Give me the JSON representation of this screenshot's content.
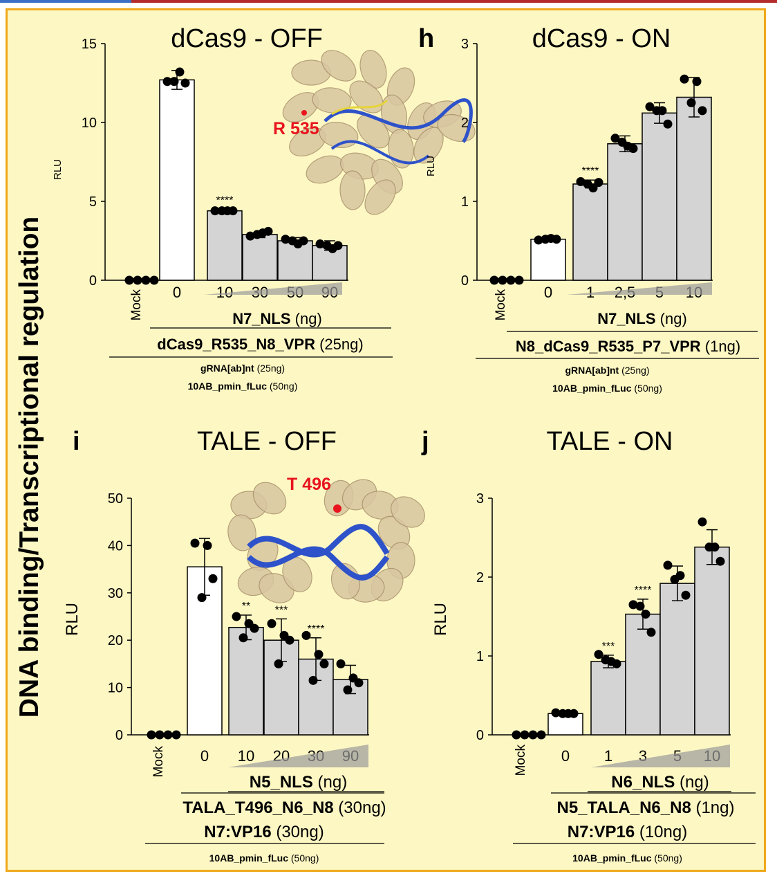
{
  "y_section_label": "DNA binding/Transcriptional regulation",
  "colors": {
    "background": "#fdf7c3",
    "border": "#f0a81c",
    "bar_control": "#ffffff",
    "bar_treated": "#d4d4d4",
    "dot": "#000000",
    "highlight_red": "#e8141e",
    "protein": "#d8c6a0",
    "dna": "#2e52c9"
  },
  "chart_data": [
    {
      "panel_letter": "",
      "title": "dCas9 - OFF",
      "type": "bar",
      "ylabel": "RLU",
      "ylim": [
        0,
        15
      ],
      "yticks": [
        0,
        5,
        10,
        15
      ],
      "categories": [
        "Mock",
        "0",
        "10",
        "30",
        "50",
        "90"
      ],
      "values": [
        0,
        12.7,
        4.4,
        2.9,
        2.5,
        2.2
      ],
      "errors": [
        0,
        0.6,
        0.1,
        0.2,
        0.2,
        0.3
      ],
      "replicates": [
        [
          0,
          0,
          0,
          0
        ],
        [
          12.6,
          13.2,
          12.5,
          12.6
        ],
        [
          4.4,
          4.4,
          4.4,
          4.4
        ],
        [
          2.8,
          3.0,
          3.1,
          2.9
        ],
        [
          2.6,
          2.3,
          2.5,
          2.5
        ],
        [
          2.3,
          2.0,
          2.2,
          2.2
        ]
      ],
      "bar_styles": [
        "none",
        "control",
        "treated",
        "treated",
        "treated",
        "treated"
      ],
      "significance": {
        "2": "****"
      },
      "ramp": {
        "from": 2,
        "to": 5
      },
      "label_rows": [
        {
          "text": "N7_NLS",
          "suffix": "(ng)",
          "bold": true
        },
        {
          "text": "dCas9_R535_N8_VPR",
          "suffix": "(25ng)",
          "bold": true
        },
        {
          "text": "gRNA[ab]nt",
          "suffix": "(25ng)",
          "bold": false
        },
        {
          "text": "10AB_pmin_fLuc",
          "suffix": "(50ng)",
          "bold": false
        }
      ],
      "structure_label": "R 535",
      "structure_type": "cas9"
    },
    {
      "panel_letter": "h",
      "title": "dCas9 - ON",
      "type": "bar",
      "ylabel": "RLU",
      "ylim": [
        0,
        3
      ],
      "yticks": [
        0,
        1,
        2,
        3
      ],
      "categories": [
        "Mock",
        "0",
        "1",
        "2,5",
        "5",
        "10"
      ],
      "values": [
        0,
        0.52,
        1.22,
        1.73,
        2.12,
        2.32
      ],
      "errors": [
        0,
        0.02,
        0.05,
        0.1,
        0.13,
        0.25
      ],
      "replicates": [
        [
          0,
          0,
          0,
          0
        ],
        [
          0.51,
          0.53,
          0.52,
          0.52
        ],
        [
          1.25,
          1.17,
          1.24,
          1.22
        ],
        [
          1.8,
          1.7,
          1.67,
          1.75
        ],
        [
          2.2,
          2.15,
          1.98,
          2.15
        ],
        [
          2.55,
          2.52,
          2.15,
          2.25
        ]
      ],
      "bar_styles": [
        "none",
        "control",
        "treated",
        "treated",
        "treated",
        "treated"
      ],
      "significance": {
        "2": "****"
      },
      "ramp": {
        "from": 2,
        "to": 5
      },
      "label_rows": [
        {
          "text": "N7_NLS",
          "suffix": "(ng)",
          "bold": true
        },
        {
          "text": "N8_dCas9_R535_P7_VPR",
          "suffix": "(1ng)",
          "bold": true
        },
        {
          "text": "gRNA[ab]nt",
          "suffix": "(25ng)",
          "bold": false
        },
        {
          "text": "10AB_pmin_fLuc",
          "suffix": "(50ng)",
          "bold": false
        }
      ],
      "structure_label": "",
      "structure_type": ""
    },
    {
      "panel_letter": "i",
      "title": "TALE - OFF",
      "type": "bar",
      "ylabel": "RLU",
      "ylim": [
        0,
        50
      ],
      "yticks": [
        0,
        10,
        20,
        30,
        40,
        50
      ],
      "categories": [
        "Mock",
        "0",
        "10",
        "20",
        "30",
        "90"
      ],
      "values": [
        0,
        35.5,
        22.7,
        20,
        16,
        11.7
      ],
      "errors": [
        0,
        6,
        2.6,
        4.5,
        4.5,
        3
      ],
      "replicates": [
        [
          0,
          0,
          0,
          0
        ],
        [
          40.5,
          40,
          33,
          29
        ],
        [
          25,
          23.5,
          22.5,
          20.5
        ],
        [
          23.5,
          21,
          20,
          15
        ],
        [
          21,
          17,
          15,
          11.5
        ],
        [
          15,
          12,
          11,
          9.5
        ]
      ],
      "bar_styles": [
        "none",
        "control",
        "treated",
        "treated",
        "treated",
        "treated"
      ],
      "significance": {
        "2": "**",
        "3": "***",
        "4": "****"
      },
      "ramp": {
        "from": 2,
        "to": 5
      },
      "label_rows": [
        {
          "text": "N5_NLS",
          "suffix": "(ng)",
          "bold": true
        },
        {
          "text": "TALA_T496_N6_N8",
          "suffix": "(30ng)",
          "bold": true
        },
        {
          "text": "N7:VP16",
          "suffix": "(30ng)",
          "bold": true
        },
        {
          "text": "10AB_pmin_fLuc",
          "suffix": "(50ng)",
          "bold": false
        }
      ],
      "structure_label": "T 496",
      "structure_type": "tale"
    },
    {
      "panel_letter": "j",
      "title": "TALE - ON",
      "type": "bar",
      "ylabel": "RLU",
      "ylim": [
        0,
        3
      ],
      "yticks": [
        0,
        1,
        2,
        3
      ],
      "categories": [
        "Mock",
        "0",
        "1",
        "3",
        "5",
        "10"
      ],
      "values": [
        0,
        0.27,
        0.93,
        1.53,
        1.92,
        2.38
      ],
      "errors": [
        0,
        0.02,
        0.08,
        0.19,
        0.22,
        0.22
      ],
      "replicates": [
        [
          0,
          0,
          0,
          0
        ],
        [
          0.28,
          0.27,
          0.27,
          0.27
        ],
        [
          1.02,
          0.93,
          0.9,
          0.95
        ],
        [
          1.65,
          1.53,
          1.3,
          1.63
        ],
        [
          2.15,
          2.02,
          1.77,
          1.97
        ],
        [
          2.7,
          2.38,
          2.2,
          2.38
        ]
      ],
      "bar_styles": [
        "none",
        "control",
        "treated",
        "treated",
        "treated",
        "treated"
      ],
      "significance": {
        "2": "***",
        "3": "****"
      },
      "ramp": {
        "from": 2,
        "to": 5
      },
      "label_rows": [
        {
          "text": "N6_NLS",
          "suffix": "(ng)",
          "bold": true
        },
        {
          "text": "N5_TALA_N6_N8",
          "suffix": "(1ng)",
          "bold": true
        },
        {
          "text": "N7:VP16",
          "suffix": "(10ng)",
          "bold": true
        },
        {
          "text": "10AB_pmin_fLuc",
          "suffix": "(50ng)",
          "bold": false
        }
      ],
      "structure_label": "",
      "structure_type": ""
    }
  ]
}
